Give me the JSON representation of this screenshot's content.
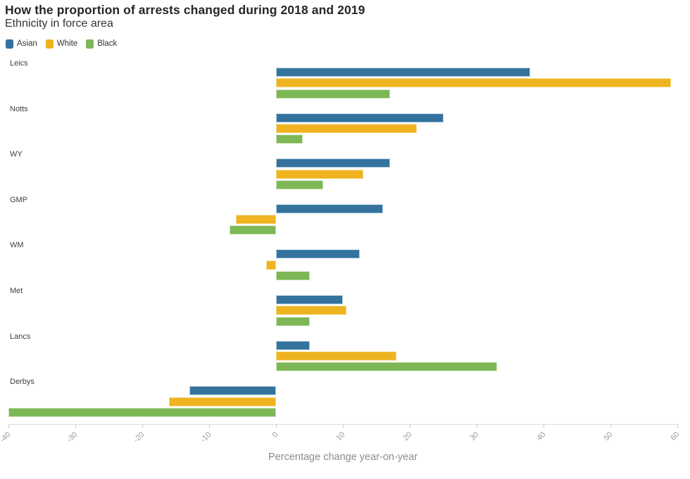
{
  "header": {
    "title": "How the proportion of arrests changed during 2018 and 2019",
    "subtitle": "Ethnicity in force area"
  },
  "chart_data": {
    "type": "bar",
    "orientation": "horizontal",
    "title": "How the proportion of arrests changed during 2018 and 2019",
    "subtitle": "Ethnicity in force area",
    "categories": [
      "Leics",
      "Notts",
      "WY",
      "GMP",
      "WM",
      "Met",
      "Lancs",
      "Derbys"
    ],
    "series": [
      {
        "name": "Asian",
        "color": "#33739d",
        "border_color": "#b9cfdf",
        "values": [
          38,
          25,
          17,
          16,
          12.5,
          10,
          5,
          -13
        ]
      },
      {
        "name": "White",
        "color": "#eeb31f",
        "border_color": "#f6da90",
        "values": [
          59,
          21,
          13,
          -6,
          -1.5,
          10.5,
          18,
          -16
        ]
      },
      {
        "name": "Black",
        "color": "#7db756",
        "border_color": "#cbe2b8",
        "values": [
          17,
          4,
          7,
          -7,
          5,
          5,
          33,
          -40
        ]
      }
    ],
    "xlabel": "Percentage change year-on-year",
    "ylabel": "",
    "xlim": [
      -40,
      60
    ],
    "xticks": [
      -40,
      -30,
      -20,
      -10,
      0,
      10,
      20,
      30,
      40,
      50,
      60
    ],
    "legend_position": "top-left",
    "legend_entries": [
      "Asian",
      "White",
      "Black"
    ],
    "grid": false,
    "tick_label_rotation_deg": -45
  },
  "colors": {
    "asian": "#33739d",
    "white": "#eeb31f",
    "black": "#7db756",
    "axis_line": "#dcdcdc",
    "tick_text": "#9b9b9b",
    "title_text": "#262626"
  }
}
